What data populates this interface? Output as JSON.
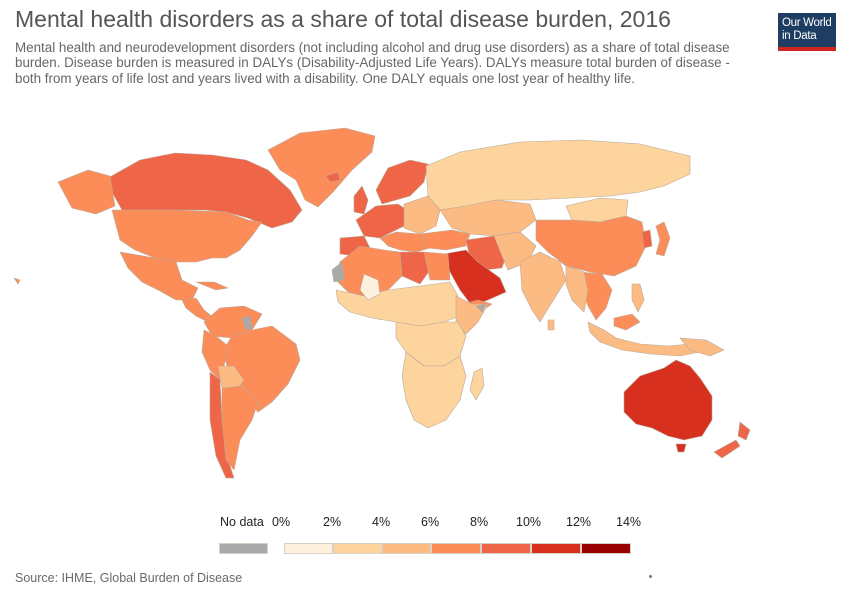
{
  "header": {
    "title": "Mental health disorders as a share of total disease burden, 2016",
    "subtitle": "Mental health and neurodevelopment disorders (not including alcohol and drug use disorders) as a share of total disease burden. Disease burden is measured in DALYs (Disability-Adjusted Life Years). DALYs measure total burden of disease - both from years of life lost and years lived with a disability. One DALY equals one lost year of healthy life.",
    "logo_line1": "Our World",
    "logo_line2": "in Data"
  },
  "colors": {
    "no_data": "#a9a9a9",
    "bin_0_2": "#fdf0dc",
    "bin_2_4": "#fdd49e",
    "bin_4_6": "#fdbb84",
    "bin_6_8": "#fc8d59",
    "bin_8_10": "#ef6548",
    "bin_10_12": "#d7301f",
    "bin_12_14": "#990000",
    "border": "#c8b9a6",
    "logo_bg": "#1d3d63",
    "logo_bar": "#ce261e"
  },
  "legend": {
    "no_data_label": "No data",
    "ticks": [
      "0%",
      "2%",
      "4%",
      "6%",
      "8%",
      "10%",
      "12%",
      "14%"
    ]
  },
  "footer": {
    "source": "Source: IHME, Global Burden of Disease"
  }
}
